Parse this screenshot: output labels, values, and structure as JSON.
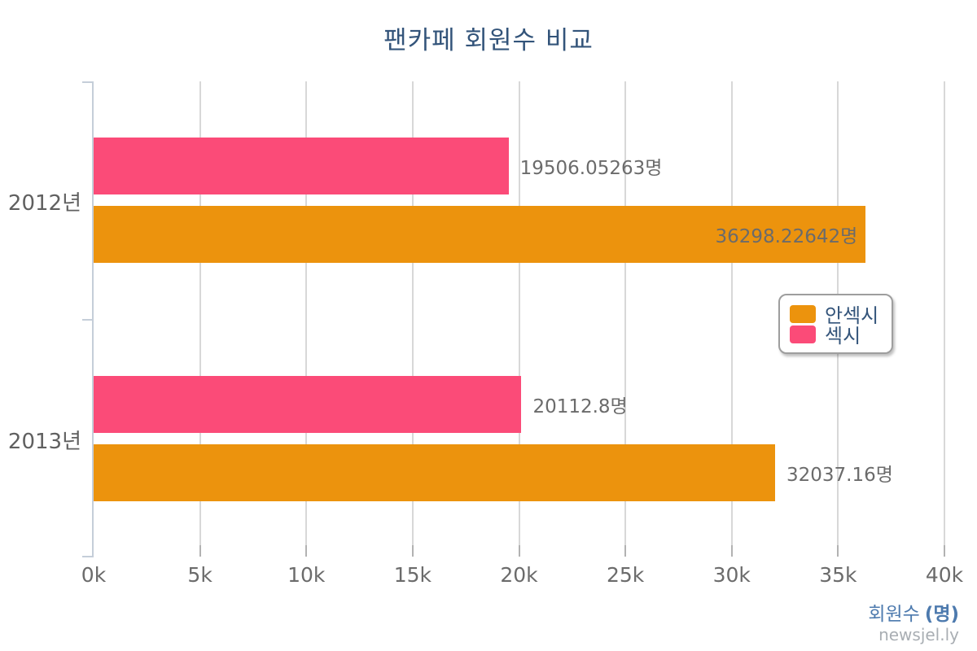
{
  "title": "팬카페 회원수 비교",
  "watermark": "newsjel.ly",
  "x_axis": {
    "tick_labels": [
      "0k",
      "5k",
      "10k",
      "15k",
      "20k",
      "25k",
      "30k",
      "35k",
      "40k"
    ],
    "title_main": "회원수",
    "title_paren": "(명)"
  },
  "legend": {
    "items": [
      {
        "label": "안섹시",
        "color": "#EC930D"
      },
      {
        "label": "섹시",
        "color": "#FB4B78"
      }
    ]
  },
  "colors": {
    "orange": "#EC930D",
    "pink": "#FB4B78",
    "title_text": "#33547A",
    "axis_title_text": "#4D7AAE",
    "value_label_text": "#6B6B6B",
    "gridline": "#D8D8D8",
    "tick_mark": "#B2B2B2",
    "axis_line": "#C5CED9",
    "watermark_text": "#A9AEB3",
    "legend_border": "#9E9E9E"
  },
  "chart_data": {
    "type": "bar",
    "orientation": "horizontal",
    "title": "팬카페 회원수 비교",
    "categories": [
      "2012년",
      "2013년"
    ],
    "series": [
      {
        "name": "안섹시",
        "color": "#EC930D",
        "values": [
          36298.22642,
          32037.16
        ],
        "value_labels": [
          "36298.22642명",
          "32037.16명"
        ]
      },
      {
        "name": "섹시",
        "color": "#FB4B78",
        "values": [
          19506.05263,
          20112.8
        ],
        "value_labels": [
          "19506.05263명",
          "20112.8명"
        ]
      }
    ],
    "xlabel": "회원수 (명)",
    "ylabel": "",
    "xlim": [
      0,
      40000
    ],
    "x_tick_step": 5000,
    "grid": true,
    "legend_position": "right-middle",
    "bar_order_top_to_bottom": [
      "섹시",
      "안섹시"
    ]
  }
}
